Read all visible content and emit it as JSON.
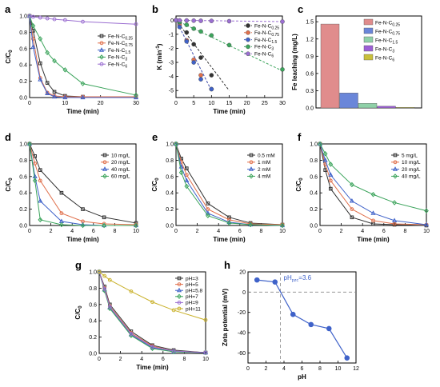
{
  "chart_data": [
    {
      "panel": "a",
      "type": "line",
      "xlabel": "Time (min)",
      "ylabel": "C/C0",
      "xlim": [
        0,
        30
      ],
      "ylim": [
        0,
        1.0
      ],
      "xticks": [
        0,
        10,
        20,
        30
      ],
      "yticks": [
        0.0,
        0.2,
        0.4,
        0.6,
        0.8,
        1.0
      ],
      "legend": "right",
      "x": [
        0,
        1,
        3,
        5,
        7,
        10,
        15,
        30
      ],
      "series": [
        {
          "name": "Fe-N-C0.25",
          "color": "#333333",
          "marker": "square",
          "values": [
            1.0,
            0.82,
            0.42,
            0.18,
            0.07,
            0.02,
            0.01,
            0.01
          ]
        },
        {
          "name": "Fe-N-C0.75",
          "color": "#e0704c",
          "marker": "circle",
          "values": [
            1.0,
            0.72,
            0.24,
            0.06,
            0.02,
            0.01,
            0.01,
            0.01
          ]
        },
        {
          "name": "Fe-N-C1.5",
          "color": "#3f62c9",
          "marker": "triangle",
          "values": [
            1.0,
            0.62,
            0.22,
            0.05,
            0.01,
            0.0,
            0.0,
            0.0
          ]
        },
        {
          "name": "Fe-N-C3",
          "color": "#3ca45c",
          "marker": "diamond",
          "values": [
            1.0,
            0.88,
            0.72,
            0.55,
            0.45,
            0.34,
            0.17,
            0.03
          ]
        },
        {
          "name": "Fe-N-C6",
          "color": "#9b6fd1",
          "marker": "circle",
          "values": [
            1.0,
            0.99,
            0.98,
            0.97,
            0.96,
            0.95,
            0.93,
            0.9
          ]
        }
      ],
      "legend_entries": [
        {
          "prefix": "Fe-N-C",
          "sub": "0.25"
        },
        {
          "prefix": "Fe-N-C",
          "sub": "0.75"
        },
        {
          "prefix": "Fe-N-C",
          "sub": "1.5"
        },
        {
          "prefix": "Fe-N-C",
          "sub": "3"
        },
        {
          "prefix": "Fe-N-C",
          "sub": "6"
        }
      ]
    },
    {
      "panel": "b",
      "type": "scatter",
      "xlabel": "Time (min)",
      "ylabel": "K (min-1)",
      "xlim": [
        0,
        30
      ],
      "ylim": [
        -5.5,
        0.3
      ],
      "xticks": [
        0,
        5,
        10,
        15,
        20,
        25,
        30
      ],
      "yticks": [
        0,
        -1,
        -2,
        -3,
        -4,
        -5
      ],
      "legend": "top-right",
      "series": [
        {
          "name": "Fe-N-C0.25",
          "color": "#333333",
          "x": [
            0,
            1,
            3,
            5,
            7,
            10
          ],
          "values": [
            0,
            -0.2,
            -0.87,
            -1.71,
            -2.66,
            -3.91
          ],
          "fit": [
            [
              0,
              0
            ],
            [
              15,
              -5
            ]
          ]
        },
        {
          "name": "Fe-N-C0.75",
          "color": "#e0704c",
          "x": [
            0,
            1,
            3,
            5,
            7,
            10
          ],
          "values": [
            0,
            -0.33,
            -1.43,
            -2.81,
            -3.91,
            -4.9
          ],
          "fit": [
            [
              0,
              0
            ],
            [
              10,
              -5
            ]
          ]
        },
        {
          "name": "Fe-N-C1.5",
          "color": "#3f62c9",
          "x": [
            0,
            1,
            3,
            5,
            7,
            10
          ],
          "values": [
            0,
            -0.48,
            -1.51,
            -3.0,
            -4.2,
            -4.9
          ],
          "fit": [
            [
              0,
              0
            ],
            [
              10,
              -5
            ]
          ]
        },
        {
          "name": "Fe-N-C3",
          "color": "#3ca45c",
          "x": [
            0,
            1,
            3,
            5,
            7,
            10,
            15,
            30
          ],
          "values": [
            0,
            -0.13,
            -0.33,
            -0.6,
            -0.8,
            -1.08,
            -1.77,
            -3.5
          ],
          "fit": [
            [
              0,
              0
            ],
            [
              30,
              -3.6
            ]
          ]
        },
        {
          "name": "Fe-N-C6",
          "color": "#9b6fd1",
          "x": [
            0,
            1,
            3,
            5,
            7,
            10,
            15,
            30
          ],
          "values": [
            0,
            -0.01,
            -0.02,
            -0.03,
            -0.04,
            -0.05,
            -0.07,
            -0.1
          ],
          "fit": [
            [
              0,
              0
            ],
            [
              30,
              -0.1
            ]
          ]
        }
      ],
      "legend_entries": [
        {
          "prefix": "Fe-N-C",
          "sub": "0.25"
        },
        {
          "prefix": "Fe-N-C",
          "sub": "0.75"
        },
        {
          "prefix": "Fe-N-C",
          "sub": "1.5"
        },
        {
          "prefix": "Fe-N-C",
          "sub": "3"
        },
        {
          "prefix": "Fe-N-C",
          "sub": "6"
        }
      ]
    },
    {
      "panel": "c",
      "type": "bar",
      "ylabel": "Fe leaching (mg/L)",
      "ylim": [
        0,
        1.6
      ],
      "yticks": [
        0.0,
        0.3,
        0.6,
        0.9,
        1.2,
        1.5
      ],
      "legend": "right",
      "categories": [
        "Fe-N-C0.25",
        "Fe-N-C0.75",
        "Fe-N-C1.5",
        "Fe-N-C3",
        "Fe-N-C6"
      ],
      "values": [
        1.46,
        0.26,
        0.08,
        0.03,
        0.01
      ],
      "colors": [
        "#e08c8c",
        "#6a86d9",
        "#8fd1a8",
        "#9c5fd6",
        "#c9c03a"
      ],
      "legend_entries": [
        {
          "prefix": "Fe-N-C",
          "sub": "0.25"
        },
        {
          "prefix": "Fe-N-C",
          "sub": "0.75"
        },
        {
          "prefix": "Fe-N-C",
          "sub": "1.5"
        },
        {
          "prefix": "Fe-N-C",
          "sub": "3"
        },
        {
          "prefix": "Fe-N-C",
          "sub": "6"
        }
      ]
    },
    {
      "panel": "d",
      "type": "line",
      "xlabel": "Time (min)",
      "ylabel": "C/C0",
      "xlim": [
        0,
        10
      ],
      "ylim": [
        0,
        1.0
      ],
      "xticks": [
        0,
        2,
        4,
        6,
        8,
        10
      ],
      "yticks": [
        0.0,
        0.2,
        0.4,
        0.6,
        0.8,
        1.0
      ],
      "legend": "top-right",
      "x": [
        0,
        0.5,
        1,
        3,
        5,
        7,
        10
      ],
      "series": [
        {
          "name": "10 mg/L",
          "color": "#333333",
          "marker": "square",
          "values": [
            1.0,
            0.85,
            0.68,
            0.4,
            0.2,
            0.1,
            0.03
          ]
        },
        {
          "name": "20 mg/L",
          "color": "#e0704c",
          "marker": "circle",
          "values": [
            1.0,
            0.76,
            0.55,
            0.15,
            0.05,
            0.02,
            0.01
          ]
        },
        {
          "name": "40 mg/L",
          "color": "#3f62c9",
          "marker": "triangle",
          "values": [
            1.0,
            0.6,
            0.3,
            0.05,
            0.01,
            0.0,
            0.0
          ]
        },
        {
          "name": "60 mg/L",
          "color": "#3ca45c",
          "marker": "diamond",
          "values": [
            1.0,
            0.55,
            0.07,
            0.01,
            0.0,
            0.0,
            0.0
          ]
        }
      ]
    },
    {
      "panel": "e",
      "type": "line",
      "xlabel": "Time (min)",
      "ylabel": "C/C0",
      "xlim": [
        0,
        10
      ],
      "ylim": [
        0,
        1.0
      ],
      "xticks": [
        0,
        2,
        4,
        6,
        8,
        10
      ],
      "yticks": [
        0.0,
        0.2,
        0.4,
        0.6,
        0.8,
        1.0
      ],
      "legend": "top-right",
      "x": [
        0,
        0.5,
        1,
        3,
        5,
        7,
        10
      ],
      "series": [
        {
          "name": "0.5 mM",
          "color": "#333333",
          "marker": "square",
          "values": [
            1.0,
            0.82,
            0.7,
            0.27,
            0.1,
            0.03,
            0.01
          ]
        },
        {
          "name": "1 mM",
          "color": "#e0704c",
          "marker": "circle",
          "values": [
            1.0,
            0.78,
            0.62,
            0.2,
            0.07,
            0.02,
            0.01
          ]
        },
        {
          "name": "2 mM",
          "color": "#3f62c9",
          "marker": "triangle",
          "values": [
            1.0,
            0.72,
            0.55,
            0.15,
            0.04,
            0.01,
            0.0
          ]
        },
        {
          "name": "4 mM",
          "color": "#3ca45c",
          "marker": "diamond",
          "values": [
            1.0,
            0.65,
            0.48,
            0.12,
            0.03,
            0.01,
            0.0
          ]
        }
      ]
    },
    {
      "panel": "f",
      "type": "line",
      "xlabel": "Time (min)",
      "ylabel": "C/C0",
      "xlim": [
        0,
        10
      ],
      "ylim": [
        0,
        1.0
      ],
      "xticks": [
        0,
        2,
        4,
        6,
        8,
        10
      ],
      "yticks": [
        0.0,
        0.2,
        0.4,
        0.6,
        0.8,
        1.0
      ],
      "legend": "top-right",
      "x": [
        0,
        0.5,
        1,
        3,
        5,
        7,
        10
      ],
      "series": [
        {
          "name": "5 mg/L",
          "color": "#333333",
          "marker": "square",
          "values": [
            1.0,
            0.68,
            0.45,
            0.1,
            0.02,
            0.01,
            0.0
          ]
        },
        {
          "name": "10 mg/L",
          "color": "#e0704c",
          "marker": "circle",
          "values": [
            1.0,
            0.75,
            0.55,
            0.2,
            0.06,
            0.02,
            0.01
          ]
        },
        {
          "name": "20 mg/L",
          "color": "#3f62c9",
          "marker": "triangle",
          "values": [
            1.0,
            0.8,
            0.62,
            0.3,
            0.15,
            0.06,
            0.01
          ]
        },
        {
          "name": "40 mg/L",
          "color": "#3ca45c",
          "marker": "diamond",
          "values": [
            1.0,
            0.88,
            0.75,
            0.5,
            0.38,
            0.28,
            0.18
          ]
        }
      ]
    },
    {
      "panel": "g",
      "type": "line",
      "xlabel": "Time (min)",
      "ylabel": "C/C0",
      "xlim": [
        0,
        10
      ],
      "ylim": [
        0,
        1.0
      ],
      "xticks": [
        0,
        2,
        4,
        6,
        8,
        10
      ],
      "yticks": [
        0.0,
        0.2,
        0.4,
        0.6,
        0.8,
        1.0
      ],
      "legend": "top-right",
      "x": [
        0,
        0.5,
        1,
        3,
        5,
        7,
        10
      ],
      "series": [
        {
          "name": "pH=3",
          "color": "#333333",
          "marker": "square",
          "values": [
            1.0,
            0.82,
            0.6,
            0.27,
            0.1,
            0.04,
            0.01
          ]
        },
        {
          "name": "pH=5",
          "color": "#e0704c",
          "marker": "circle",
          "values": [
            1.0,
            0.8,
            0.58,
            0.25,
            0.09,
            0.03,
            0.01
          ]
        },
        {
          "name": "pH=5.8",
          "color": "#3f62c9",
          "marker": "triangle",
          "values": [
            1.0,
            0.78,
            0.56,
            0.23,
            0.07,
            0.02,
            0.01
          ]
        },
        {
          "name": "pH=7",
          "color": "#3ca45c",
          "marker": "diamond",
          "values": [
            1.0,
            0.77,
            0.55,
            0.22,
            0.06,
            0.02,
            0.01
          ]
        },
        {
          "name": "pH=9",
          "color": "#9b6fd1",
          "marker": "circle",
          "values": [
            1.0,
            0.79,
            0.57,
            0.24,
            0.08,
            0.03,
            0.01
          ]
        },
        {
          "name": "pH=11",
          "color": "#c9b12a",
          "marker": "circle",
          "values": [
            1.0,
            0.95,
            0.9,
            0.76,
            0.63,
            0.53,
            0.41
          ]
        }
      ]
    },
    {
      "panel": "h",
      "type": "line",
      "xlabel": "pH",
      "ylabel": "Zeta potential (mV)",
      "xlim": [
        0,
        12
      ],
      "ylim": [
        -70,
        20
      ],
      "xticks": [
        0,
        2,
        4,
        6,
        8,
        10,
        12
      ],
      "yticks": [
        20,
        0,
        -20,
        -40,
        -60
      ],
      "annotation": "pHpzc=3.6",
      "annotation_main": "pH",
      "annotation_sub": "pzc",
      "annotation_tail": "=3.6",
      "ref_x": 3.6,
      "ref_y": 0,
      "series": [
        {
          "name": "",
          "color": "#3f62c9",
          "marker": "circle",
          "x": [
            1,
            3,
            5,
            7,
            9,
            11
          ],
          "values": [
            12,
            10,
            -22,
            -32,
            -36,
            -65
          ]
        }
      ]
    }
  ]
}
